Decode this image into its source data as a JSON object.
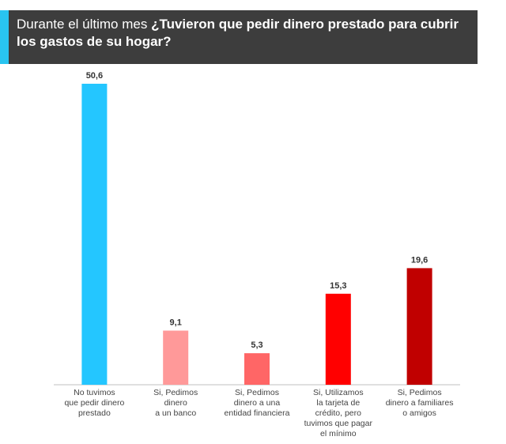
{
  "header": {
    "title_normal": "Durante el último mes ",
    "title_bold": "¿Tuvieron que pedir dinero prestado para cubrir los gastos de su hogar?",
    "background_color": "#3d3d3d",
    "accent_color": "#29c4f0"
  },
  "chart_data": {
    "type": "bar",
    "categories": [
      [
        "No tuvimos",
        "que pedir dinero",
        "prestado"
      ],
      [
        "Si, Pedimos",
        "dinero",
        "a un banco"
      ],
      [
        "Si, Pedimos",
        "dinero a una",
        "entidad financiera"
      ],
      [
        "Si, Utilizamos",
        "la tarjeta de",
        "crédito, pero",
        "tuvimos que pagar",
        "el mínimo"
      ],
      [
        "Si, Pedimos",
        "dinero a familiares",
        "o amigos"
      ]
    ],
    "values": [
      50.6,
      9.1,
      5.3,
      15.3,
      19.6
    ],
    "value_labels": [
      "50,6",
      "9,1",
      "5,3",
      "15,3",
      "19,6"
    ],
    "colors": [
      "#24c6ff",
      "#ff9999",
      "#ff6666",
      "#ff0000",
      "#c00000"
    ],
    "ylim": [
      0,
      50.6
    ],
    "grid": false,
    "legend": "none"
  }
}
